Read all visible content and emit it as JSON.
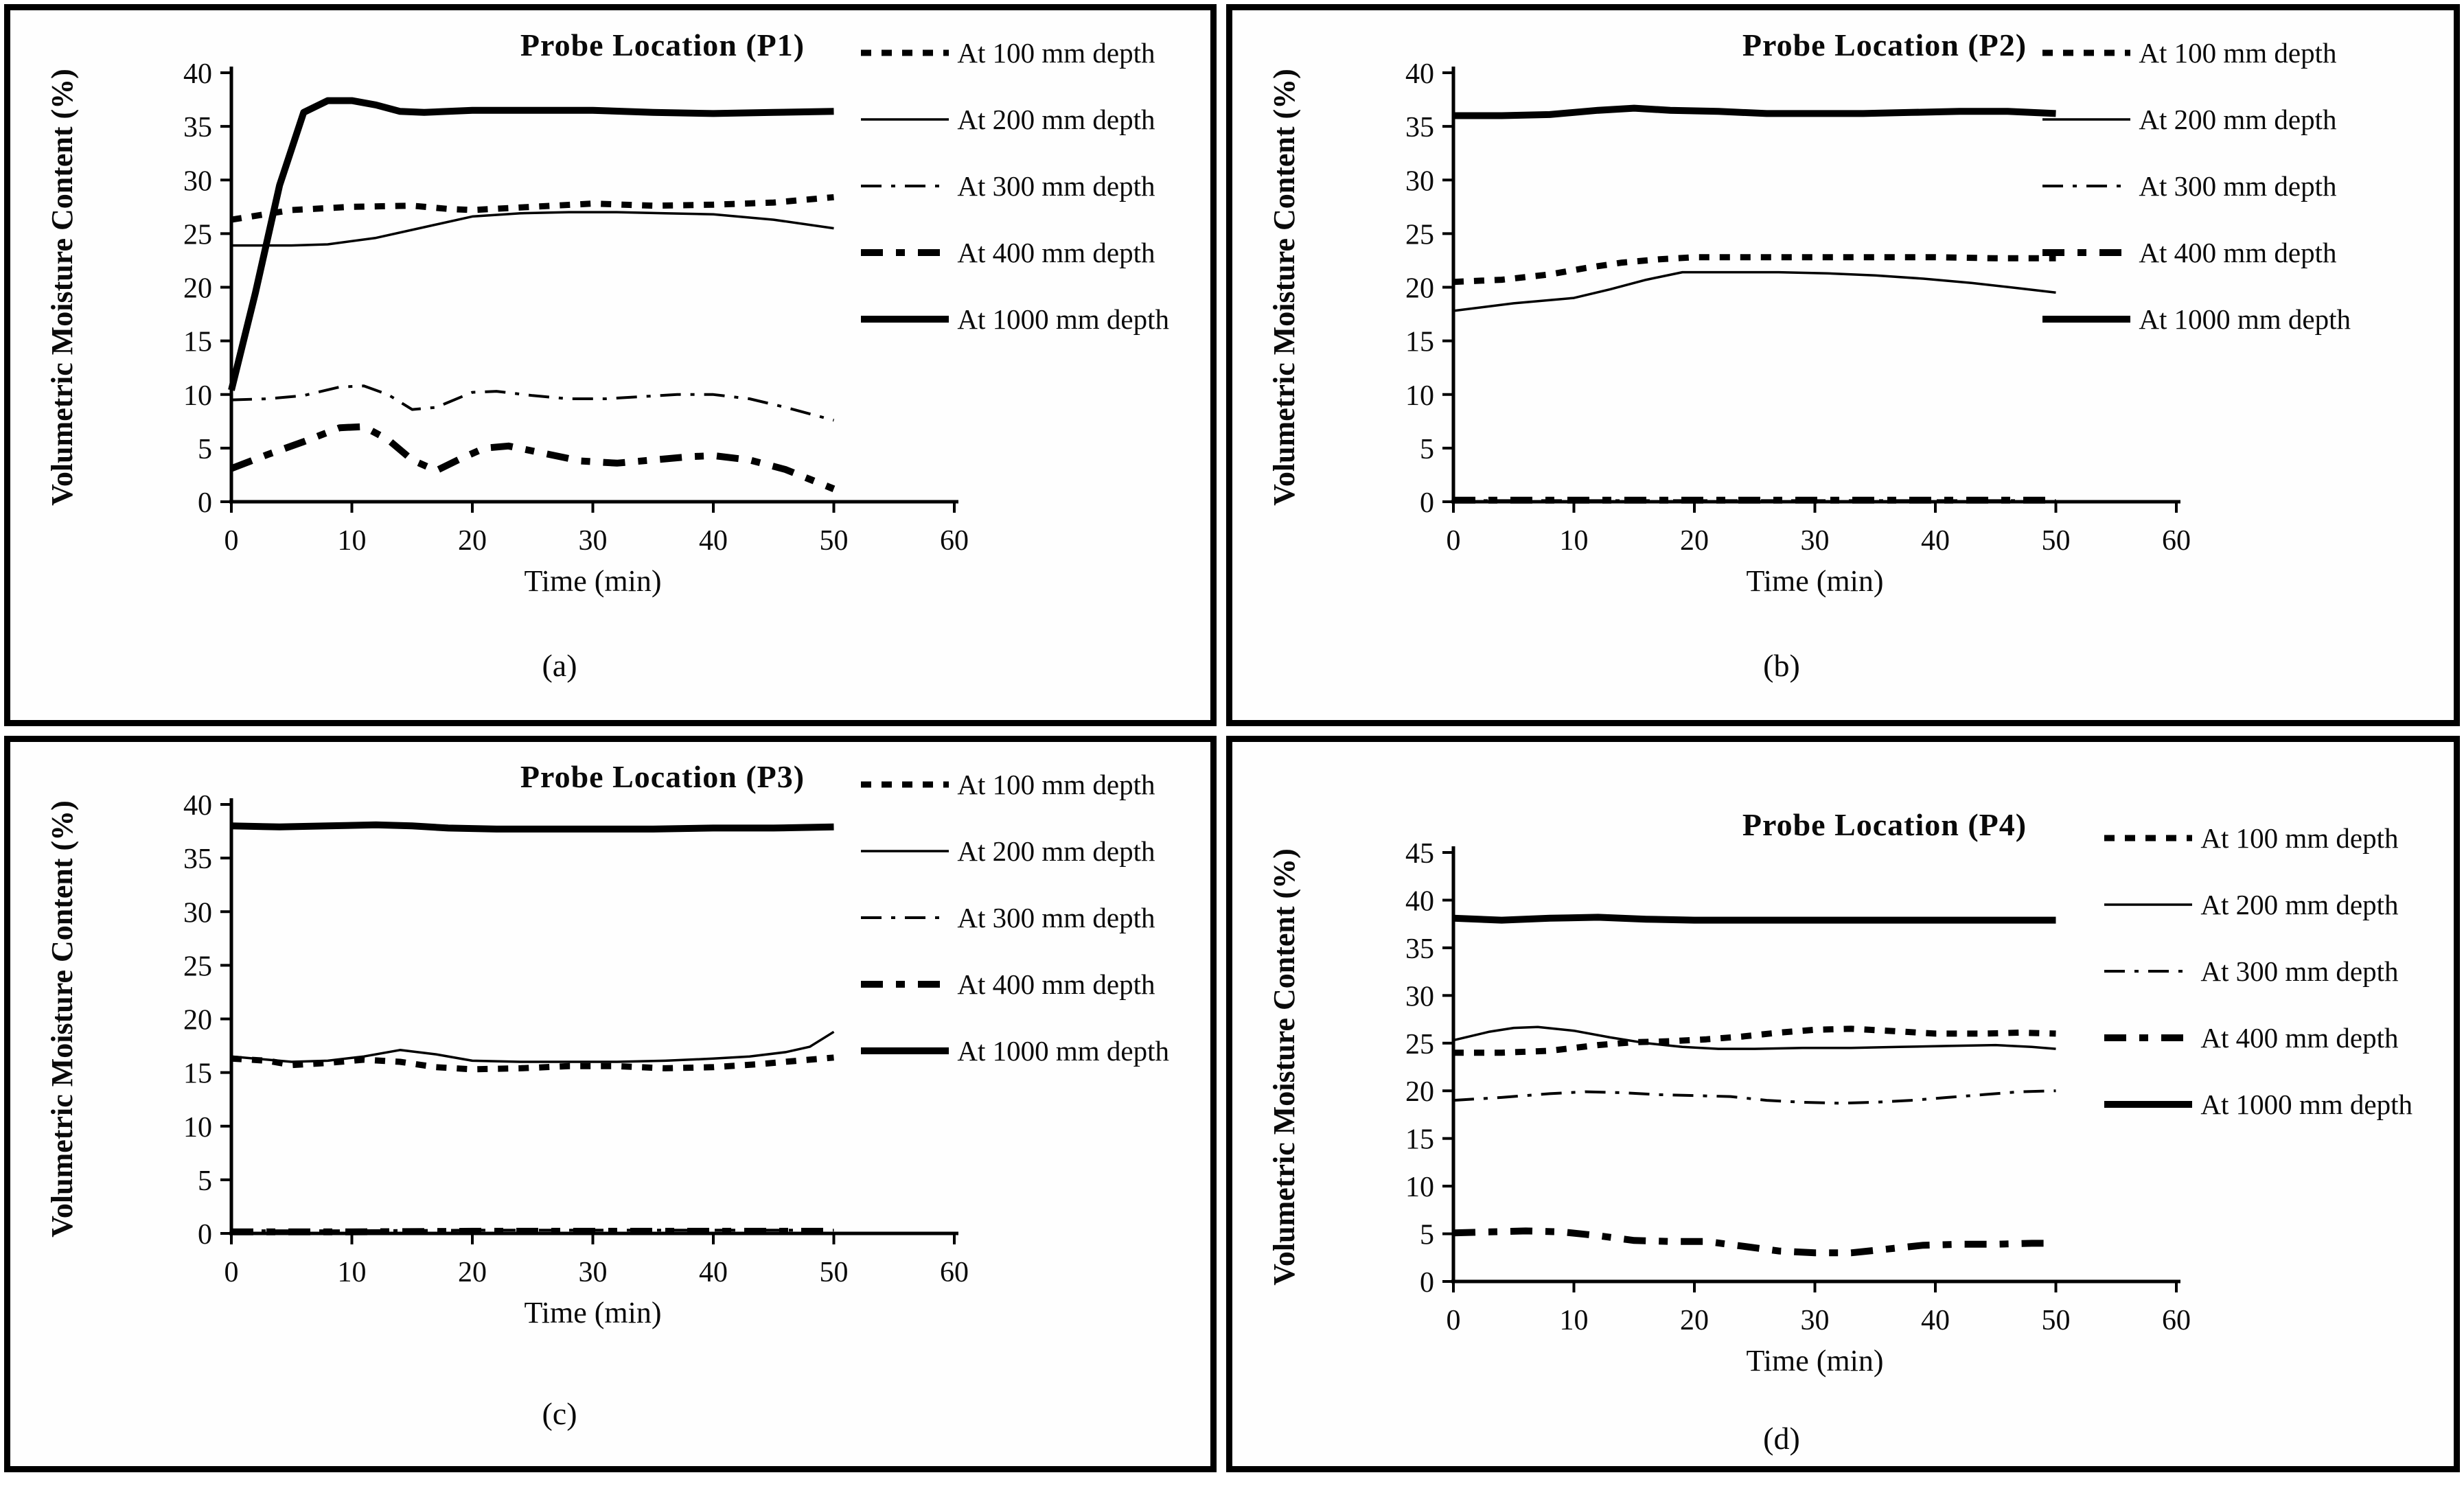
{
  "figure": {
    "background": "#ffffff",
    "line_color": "#000000",
    "text_color": "#0a0a0a",
    "y_axis_label": "Volumetric Moisture Content (%)",
    "x_axis_label": "Time (min)",
    "legend_labels": [
      "At 100 mm depth",
      "At 200 mm depth",
      "At 300 mm depth",
      "At 400 mm depth",
      "At 1000 mm depth"
    ]
  },
  "chart_data": [
    {
      "type": "line",
      "title": "Probe Location (P1)",
      "caption": "(a)",
      "xlabel": "Time (min)",
      "ylabel": "Volumetric Moisture Content (%)",
      "xlim": [
        0,
        60
      ],
      "ylim": [
        0,
        40
      ],
      "xticks": [
        0,
        10,
        20,
        30,
        40,
        50,
        60
      ],
      "yticks": [
        0,
        5,
        10,
        15,
        20,
        25,
        30,
        35,
        40
      ],
      "grid": false,
      "legend_position": "top-right",
      "series": [
        {
          "name": "At 100 mm depth",
          "style": "dotted-bold",
          "x": [
            0,
            5,
            10,
            15,
            18,
            20,
            25,
            30,
            35,
            40,
            45,
            50
          ],
          "y": [
            26.3,
            27.2,
            27.5,
            27.6,
            27.3,
            27.2,
            27.5,
            27.8,
            27.6,
            27.7,
            27.9,
            28.4
          ]
        },
        {
          "name": "At 200 mm depth",
          "style": "solid-thin",
          "x": [
            0,
            5,
            8,
            12,
            16,
            20,
            24,
            28,
            32,
            36,
            40,
            45,
            50
          ],
          "y": [
            23.9,
            23.9,
            24.0,
            24.6,
            25.6,
            26.6,
            26.9,
            27.0,
            27.0,
            26.9,
            26.8,
            26.3,
            25.5
          ]
        },
        {
          "name": "At 300 mm depth",
          "style": "dashdot",
          "x": [
            0,
            3,
            6,
            9,
            11,
            13,
            15,
            17,
            20,
            22,
            25,
            28,
            31,
            34,
            37,
            40,
            43,
            46,
            48,
            50
          ],
          "y": [
            9.5,
            9.6,
            9.9,
            10.7,
            10.8,
            10.0,
            8.6,
            8.8,
            10.2,
            10.3,
            9.9,
            9.6,
            9.6,
            9.8,
            10.0,
            10.0,
            9.6,
            8.8,
            8.2,
            7.6
          ]
        },
        {
          "name": "At 400 mm depth",
          "style": "dash-bold",
          "x": [
            0,
            3,
            6,
            9,
            11,
            13,
            15,
            17,
            19,
            21,
            23,
            26,
            29,
            32,
            35,
            38,
            40,
            43,
            46,
            48,
            50
          ],
          "y": [
            3.1,
            4.4,
            5.6,
            6.9,
            7.0,
            5.8,
            3.9,
            2.9,
            4.0,
            5.0,
            5.2,
            4.5,
            3.8,
            3.6,
            3.9,
            4.2,
            4.3,
            3.9,
            3.0,
            2.1,
            1.2
          ]
        },
        {
          "name": "At 1000 mm depth",
          "style": "solid-bold",
          "x": [
            0,
            2,
            4,
            6,
            8,
            10,
            12,
            14,
            16,
            20,
            25,
            30,
            35,
            40,
            45,
            50
          ],
          "y": [
            10.4,
            19.5,
            29.5,
            36.3,
            37.4,
            37.4,
            37.0,
            36.4,
            36.3,
            36.5,
            36.5,
            36.5,
            36.3,
            36.2,
            36.3,
            36.4
          ]
        }
      ]
    },
    {
      "type": "line",
      "title": "Probe Location (P2)",
      "caption": "(b)",
      "xlabel": "Time (min)",
      "ylabel": "Volumetric Moisture Content (%)",
      "xlim": [
        0,
        60
      ],
      "ylim": [
        0,
        40
      ],
      "xticks": [
        0,
        10,
        20,
        30,
        40,
        50,
        60
      ],
      "yticks": [
        0,
        5,
        10,
        15,
        20,
        25,
        30,
        35,
        40
      ],
      "grid": false,
      "legend_position": "top-right",
      "series": [
        {
          "name": "At 100 mm depth",
          "style": "dotted-bold",
          "x": [
            0,
            4,
            8,
            11,
            14,
            17,
            20,
            25,
            30,
            35,
            40,
            45,
            50
          ],
          "y": [
            20.5,
            20.7,
            21.2,
            21.8,
            22.3,
            22.6,
            22.8,
            22.8,
            22.8,
            22.8,
            22.8,
            22.7,
            22.7
          ]
        },
        {
          "name": "At 200 mm depth",
          "style": "solid-thin",
          "x": [
            0,
            5,
            10,
            13,
            16,
            19,
            23,
            27,
            31,
            35,
            39,
            43,
            47,
            50
          ],
          "y": [
            17.8,
            18.5,
            19.0,
            19.8,
            20.7,
            21.4,
            21.4,
            21.4,
            21.3,
            21.1,
            20.8,
            20.4,
            19.9,
            19.5
          ]
        },
        {
          "name": "At 300 mm depth",
          "style": "dashdot",
          "x": [
            0,
            10,
            20,
            30,
            40,
            50
          ],
          "y": [
            0.1,
            0.1,
            0.1,
            0.1,
            0.1,
            0.1
          ]
        },
        {
          "name": "At 400 mm depth",
          "style": "dash-bold",
          "x": [
            0,
            10,
            20,
            30,
            40,
            50
          ],
          "y": [
            0.15,
            0.15,
            0.15,
            0.15,
            0.15,
            0.15
          ]
        },
        {
          "name": "At 1000 mm depth",
          "style": "solid-bold",
          "x": [
            0,
            4,
            8,
            12,
            15,
            18,
            22,
            26,
            30,
            34,
            38,
            42,
            46,
            50
          ],
          "y": [
            36.0,
            36.0,
            36.1,
            36.5,
            36.7,
            36.5,
            36.4,
            36.2,
            36.2,
            36.2,
            36.3,
            36.4,
            36.4,
            36.2
          ]
        }
      ]
    },
    {
      "type": "line",
      "title": "Probe Location (P3)",
      "caption": "(c)",
      "xlabel": "Time (min)",
      "ylabel": "Volumetric Moisture Content (%)",
      "xlim": [
        0,
        60
      ],
      "ylim": [
        0,
        40
      ],
      "xticks": [
        0,
        10,
        20,
        30,
        40,
        50,
        60
      ],
      "yticks": [
        0,
        5,
        10,
        15,
        20,
        25,
        30,
        35,
        40
      ],
      "grid": false,
      "legend_position": "top-right",
      "series": [
        {
          "name": "At 100 mm depth",
          "style": "dotted-bold",
          "x": [
            0,
            3,
            5,
            8,
            11,
            14,
            17,
            20,
            24,
            28,
            32,
            36,
            40,
            44,
            47,
            50
          ],
          "y": [
            16.3,
            16.1,
            15.7,
            15.9,
            16.2,
            16.0,
            15.5,
            15.3,
            15.4,
            15.6,
            15.6,
            15.4,
            15.5,
            15.8,
            16.1,
            16.4
          ]
        },
        {
          "name": "At 200 mm depth",
          "style": "solid-thin",
          "x": [
            0,
            3,
            5,
            8,
            11,
            14,
            17,
            20,
            24,
            28,
            32,
            36,
            40,
            43,
            46,
            48,
            50
          ],
          "y": [
            16.5,
            16.2,
            16.0,
            16.1,
            16.5,
            17.1,
            16.7,
            16.1,
            16.0,
            16.0,
            16.0,
            16.1,
            16.3,
            16.5,
            16.9,
            17.4,
            18.8
          ]
        },
        {
          "name": "At 300 mm depth",
          "style": "dashdot",
          "x": [
            0,
            10,
            20,
            30,
            40,
            50
          ],
          "y": [
            0.25,
            0.25,
            0.3,
            0.3,
            0.3,
            0.3
          ]
        },
        {
          "name": "At 400 mm depth",
          "style": "dash-bold",
          "x": [
            0,
            10,
            20,
            30,
            40,
            50
          ],
          "y": [
            0.15,
            0.15,
            0.2,
            0.2,
            0.2,
            0.2
          ]
        },
        {
          "name": "At 1000 mm depth",
          "style": "solid-bold",
          "x": [
            0,
            4,
            8,
            12,
            15,
            18,
            22,
            26,
            30,
            35,
            40,
            45,
            50
          ],
          "y": [
            38.0,
            37.9,
            38.0,
            38.1,
            38.0,
            37.8,
            37.7,
            37.7,
            37.7,
            37.7,
            37.8,
            37.8,
            37.9
          ]
        }
      ]
    },
    {
      "type": "line",
      "title": "Probe Location (P4)",
      "caption": "(d)",
      "xlabel": "Time (min)",
      "ylabel": "Volumetric Moisture Content (%)",
      "xlim": [
        0,
        60
      ],
      "ylim": [
        0,
        45
      ],
      "xticks": [
        0,
        10,
        20,
        30,
        40,
        50,
        60
      ],
      "yticks": [
        0,
        5,
        10,
        15,
        20,
        25,
        30,
        35,
        40,
        45
      ],
      "grid": false,
      "legend_position": "top-right",
      "series": [
        {
          "name": "At 100 mm depth",
          "style": "dotted-bold",
          "x": [
            0,
            4,
            8,
            12,
            15,
            18,
            21,
            24,
            27,
            30,
            33,
            36,
            40,
            44,
            47,
            50
          ],
          "y": [
            24.0,
            24.0,
            24.2,
            24.8,
            25.1,
            25.2,
            25.4,
            25.7,
            26.1,
            26.4,
            26.5,
            26.3,
            26.0,
            26.0,
            26.1,
            26.0
          ]
        },
        {
          "name": "At 200 mm depth",
          "style": "solid-thin",
          "x": [
            0,
            3,
            5,
            7,
            10,
            13,
            16,
            19,
            22,
            25,
            29,
            33,
            37,
            41,
            45,
            48,
            50
          ],
          "y": [
            25.3,
            26.2,
            26.6,
            26.7,
            26.3,
            25.6,
            25.0,
            24.6,
            24.4,
            24.4,
            24.5,
            24.5,
            24.6,
            24.7,
            24.8,
            24.6,
            24.4
          ]
        },
        {
          "name": "At 300 mm depth",
          "style": "dashdot",
          "x": [
            0,
            4,
            8,
            11,
            14,
            17,
            20,
            23,
            26,
            29,
            32,
            35,
            38,
            41,
            44,
            47,
            50
          ],
          "y": [
            19.0,
            19.3,
            19.7,
            19.9,
            19.8,
            19.6,
            19.5,
            19.4,
            19.0,
            18.8,
            18.7,
            18.8,
            19.0,
            19.3,
            19.6,
            19.9,
            20.0
          ]
        },
        {
          "name": "At 400 mm depth",
          "style": "dash-bold",
          "x": [
            0,
            3,
            6,
            9,
            12,
            15,
            18,
            21,
            24,
            27,
            30,
            33,
            36,
            39,
            42,
            45,
            48,
            50
          ],
          "y": [
            5.1,
            5.2,
            5.3,
            5.2,
            4.8,
            4.3,
            4.2,
            4.2,
            3.7,
            3.2,
            3.0,
            3.0,
            3.4,
            3.8,
            3.9,
            3.9,
            4.0,
            4.0
          ]
        },
        {
          "name": "At 1000 mm depth",
          "style": "solid-bold",
          "x": [
            0,
            4,
            8,
            12,
            16,
            20,
            25,
            30,
            35,
            40,
            45,
            50
          ],
          "y": [
            38.1,
            37.9,
            38.1,
            38.2,
            38.0,
            37.9,
            37.9,
            37.9,
            37.9,
            37.9,
            37.9,
            37.9
          ]
        }
      ]
    }
  ]
}
